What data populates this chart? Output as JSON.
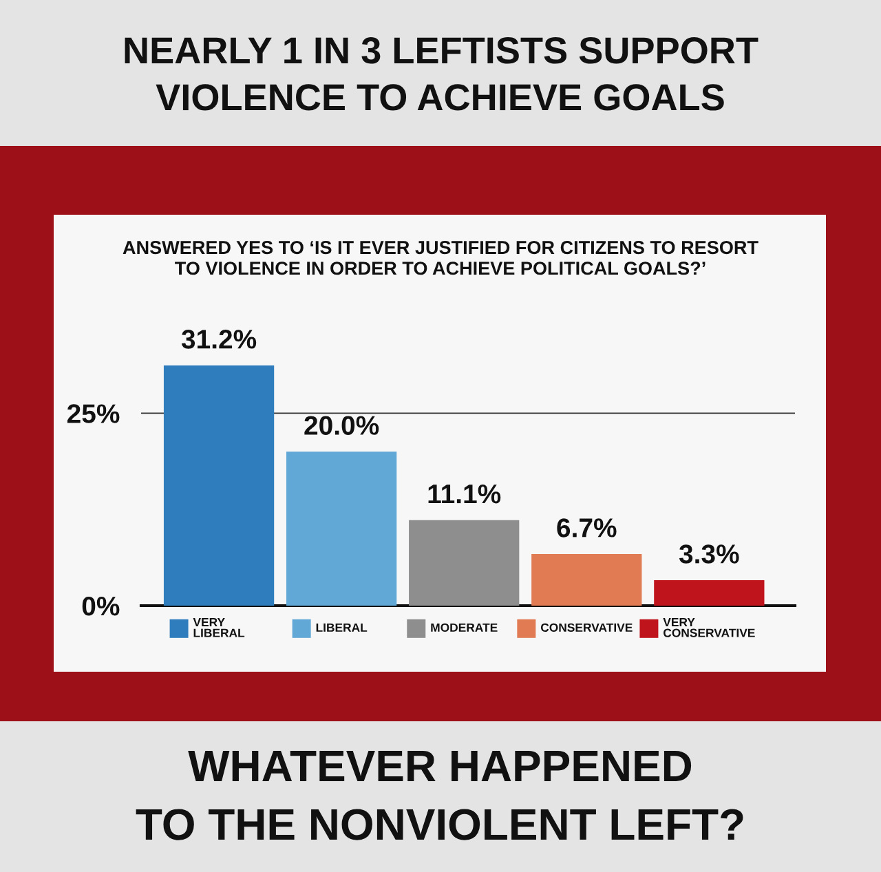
{
  "chart_data": {
    "type": "bar",
    "title": "NEARLY 1 IN 3 LEFTISTS SUPPORT\nVIOLENCE TO ACHIEVE GOALS",
    "subtitle": "ANSWERED YES TO ‘IS IT EVER JUSTIFIED FOR CITIZENS TO RESORT\nTO VIOLENCE IN ORDER TO ACHIEVE POLITICAL GOALS?’",
    "annotations": [
      "WHATEVER HAPPENED\nTO THE NONVIOLENT LEFT?"
    ],
    "categories": [
      "VERY\nLIBERAL",
      "LIBERAL",
      "MODERATE",
      "CONSERVATIVE",
      "VERY\nCONSERVATIVE"
    ],
    "values": [
      31.2,
      20.0,
      11.1,
      6.7,
      3.3
    ],
    "colors": [
      "#2f7dbd",
      "#62a8d6",
      "#8e8e8e",
      "#e07b54",
      "#c0141c"
    ],
    "value_labels": [
      "31.2%",
      "20.0%",
      "11.1%",
      "6.7%",
      "3.3%"
    ],
    "ylim": [
      0,
      31.2
    ],
    "yticks": [
      {
        "value": 0,
        "label": "0%"
      },
      {
        "value": 25,
        "label": "25%"
      }
    ],
    "grid": "y"
  }
}
